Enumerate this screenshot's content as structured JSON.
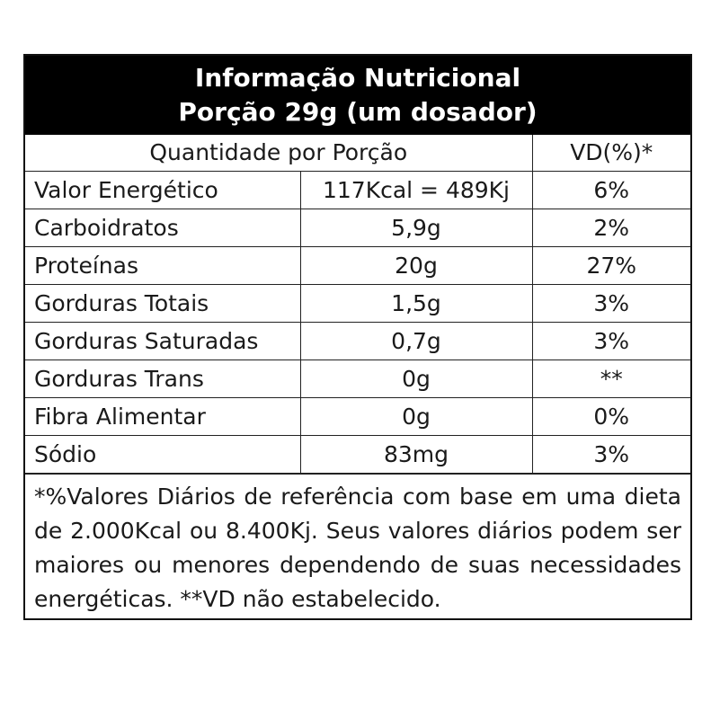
{
  "header": {
    "title": "Informação Nutricional",
    "portion": "Porção 29g (um dosador)"
  },
  "columns": {
    "quantity": "Quantidade por Porção",
    "vd": "VD(%)*"
  },
  "rows": [
    {
      "name": "Valor Energético",
      "amount": "117Kcal = 489Kj",
      "vd": "6%"
    },
    {
      "name": "Carboidratos",
      "amount": "5,9g",
      "vd": "2%"
    },
    {
      "name": "Proteínas",
      "amount": "20g",
      "vd": "27%"
    },
    {
      "name": "Gorduras Totais",
      "amount": "1,5g",
      "vd": "3%"
    },
    {
      "name": "Gorduras Saturadas",
      "amount": "0,7g",
      "vd": "3%"
    },
    {
      "name": "Gorduras Trans",
      "amount": "0g",
      "vd": "**"
    },
    {
      "name": "Fibra Alimentar",
      "amount": "0g",
      "vd": "0%"
    },
    {
      "name": "Sódio",
      "amount": "83mg",
      "vd": "3%"
    }
  ],
  "footnote": "*%Valores Diários de referência com base em uma dieta de 2.000Kcal ou 8.400Kj. Seus valores diários podem ser maiores ou menores dependendo de suas necessidades energéticas. **VD não estabelecido."
}
